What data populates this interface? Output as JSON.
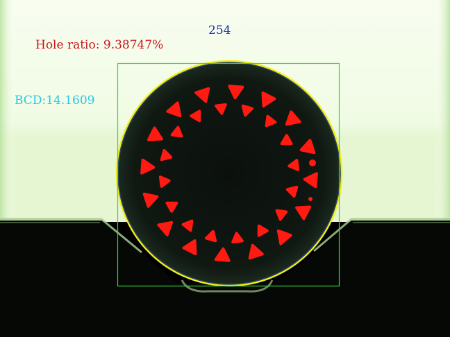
{
  "measurements": {
    "hole_ratio_label": "Hole ratio:",
    "hole_ratio_value": "9.38747%",
    "bcd_label": "BCD:",
    "bcd_value": "14.1609",
    "hole_count": "254"
  },
  "colors": {
    "hole_ratio_text": "#c8141a",
    "bcd_text": "#27c9e3",
    "count_text": "#1c2ea8",
    "bounding_box": "#3fd23f",
    "outline_circle": "#f2ee16",
    "hole_fill": "#ff1a12",
    "fiber_face": "#0c120e",
    "background_light": "#f7fdee"
  },
  "icons": [
    "fiber-cross-section-image"
  ]
}
